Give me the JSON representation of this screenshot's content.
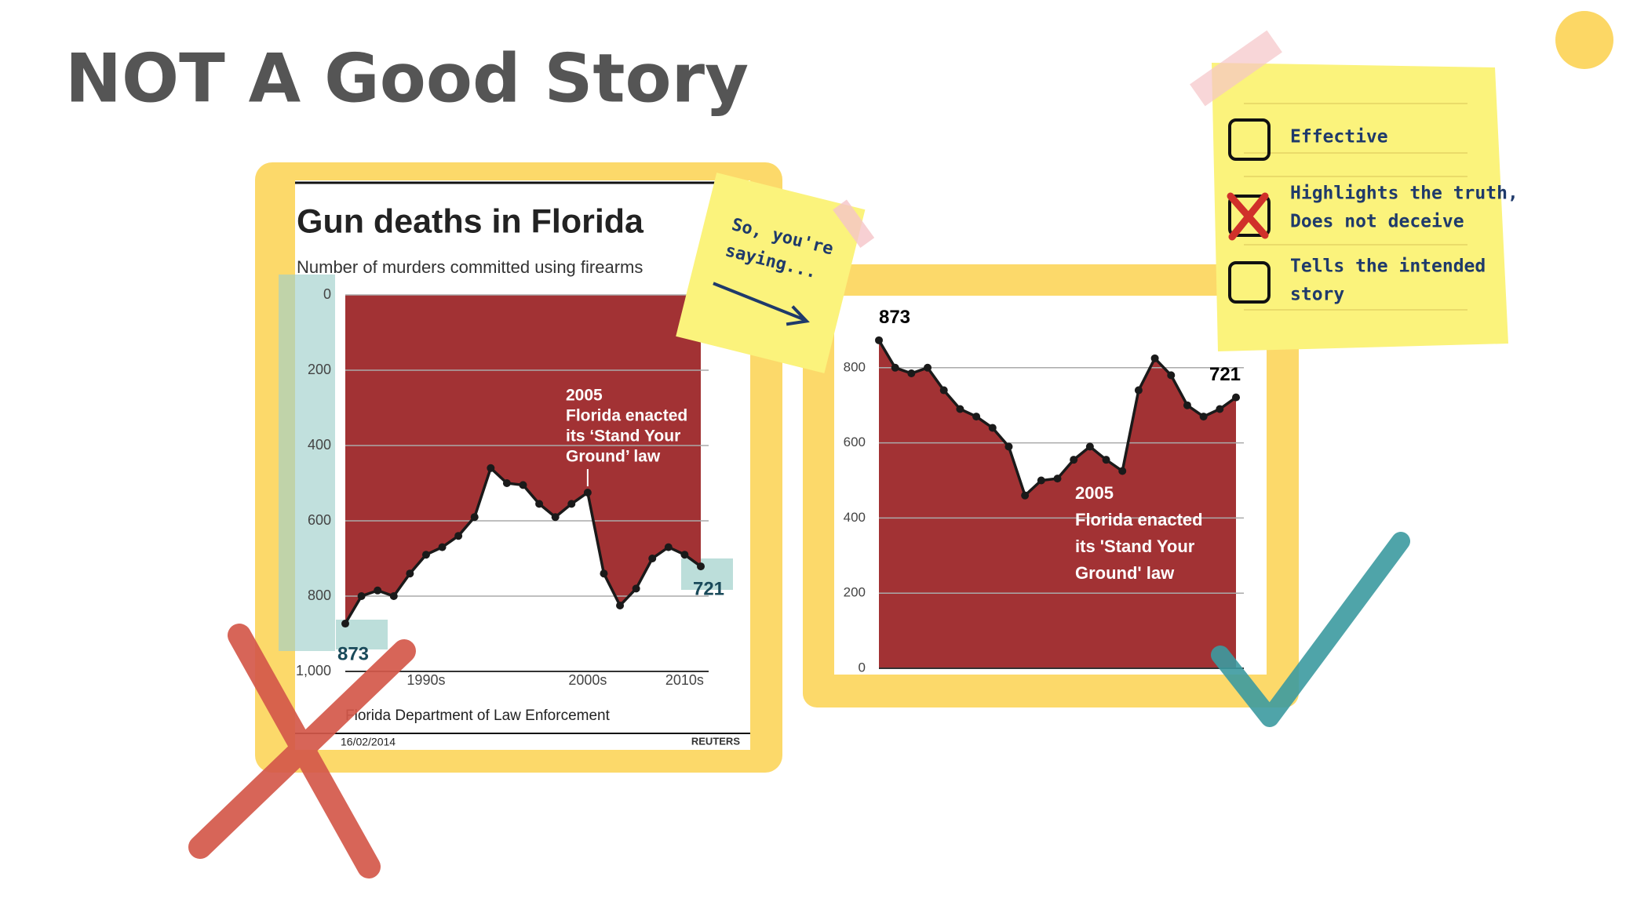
{
  "title": "NOT A Good Story",
  "chart_data": [
    {
      "type": "area",
      "title": "Gun deaths in Florida",
      "subtitle": "Number of murders committed using firearms",
      "categories": [
        null,
        null,
        null,
        null,
        null,
        "1990s",
        null,
        null,
        null,
        null,
        null,
        null,
        null,
        null,
        null,
        "2000s",
        null,
        null,
        null,
        null,
        null,
        "2010s",
        null
      ],
      "values": [
        873,
        800,
        785,
        800,
        740,
        690,
        670,
        640,
        590,
        460,
        500,
        505,
        555,
        590,
        555,
        525,
        740,
        825,
        780,
        700,
        670,
        690,
        721
      ],
      "ylim": [
        0,
        1000
      ],
      "inverted": true,
      "yticks": [
        0,
        200,
        400,
        600,
        800,
        {
          "value": 1000,
          "label": "1,000"
        }
      ],
      "grid": true,
      "color": "#a23234",
      "line_color": "#1a1a1a",
      "annotation": [
        "2005",
        "Florida enacted",
        "its ‘Stand Your",
        "Ground’ law"
      ],
      "source": "Florida Department of Law Enforcement",
      "date": "16/02/2014",
      "credit": "REUTERS"
    },
    {
      "type": "area",
      "values": [
        873,
        800,
        785,
        800,
        740,
        690,
        670,
        640,
        590,
        460,
        500,
        505,
        555,
        590,
        555,
        525,
        740,
        825,
        780,
        700,
        670,
        690,
        721
      ],
      "ylim": [
        0,
        1000
      ],
      "inverted": false,
      "yticks": [
        0,
        200,
        400,
        600,
        800
      ],
      "grid": true,
      "color": "#a23234",
      "line_color": "#1a1a1a",
      "annotation": [
        "2005",
        "Florida enacted",
        "its 'Stand Your",
        "Ground' law"
      ]
    }
  ],
  "sticky_note": [
    "So, you're",
    "saying..."
  ],
  "checklist": [
    [
      "Effective"
    ],
    [
      "Highlights the truth,",
      "Does not deceive"
    ],
    [
      "Tells the intended",
      "story"
    ]
  ]
}
